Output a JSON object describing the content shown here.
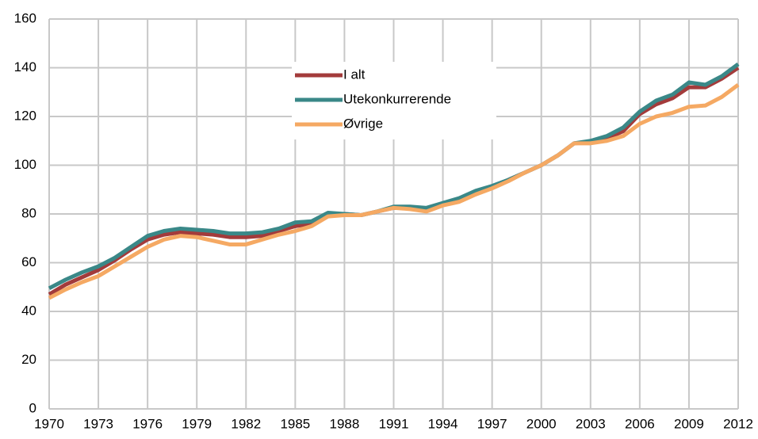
{
  "chart_data": {
    "type": "line",
    "x": [
      1970,
      1971,
      1972,
      1973,
      1974,
      1975,
      1976,
      1977,
      1978,
      1979,
      1980,
      1981,
      1982,
      1983,
      1984,
      1985,
      1986,
      1987,
      1988,
      1989,
      1990,
      1991,
      1992,
      1993,
      1994,
      1995,
      1996,
      1997,
      1998,
      1999,
      2000,
      2001,
      2002,
      2003,
      2004,
      2005,
      2006,
      2007,
      2008,
      2009,
      2010,
      2011,
      2012
    ],
    "series": [
      {
        "name": "I alt",
        "color": "#a33b3b",
        "values": [
          47,
          51,
          54,
          57,
          61,
          65.5,
          69.5,
          71.5,
          72.5,
          72,
          71.5,
          70.5,
          70.5,
          71,
          73,
          75,
          76,
          79.5,
          80,
          79.5,
          81,
          82.5,
          82.5,
          82,
          84,
          86,
          89,
          91,
          94,
          97,
          100,
          104,
          109,
          109.5,
          111,
          114,
          121,
          125,
          127.5,
          132,
          132,
          135.5,
          140
        ]
      },
      {
        "name": "Utekonkurrerende",
        "color": "#3a8888",
        "values": [
          49.5,
          53,
          56,
          58.5,
          62,
          66.5,
          71,
          73,
          74,
          73.5,
          73,
          72,
          72,
          72.5,
          74,
          76.5,
          77,
          80.5,
          80,
          79.5,
          81,
          83,
          83,
          82.5,
          84.5,
          86.5,
          89.5,
          91.5,
          94,
          97,
          100,
          104,
          109,
          110,
          112,
          115.5,
          122,
          126.5,
          129,
          134,
          133,
          136.5,
          141.5
        ]
      },
      {
        "name": "Øvrige",
        "color": "#f5a963",
        "values": [
          45.5,
          49,
          52,
          54.5,
          58.5,
          62.5,
          66.5,
          69.5,
          71,
          70.5,
          69,
          67.5,
          67.5,
          69.5,
          71.5,
          73,
          75,
          79,
          79.5,
          79.5,
          81,
          82.5,
          82,
          81,
          83.5,
          85,
          88,
          90.5,
          93.5,
          97,
          100,
          104,
          109,
          109,
          110,
          112,
          117,
          120,
          121.5,
          124,
          124.5,
          128,
          133
        ]
      }
    ],
    "xlim": [
      1970,
      2012
    ],
    "xticks": [
      1970,
      1973,
      1976,
      1979,
      1982,
      1985,
      1988,
      1991,
      1994,
      1997,
      2000,
      2003,
      2006,
      2009,
      2012
    ],
    "ylim": [
      0,
      160
    ],
    "yticks": [
      0,
      20,
      40,
      60,
      80,
      100,
      120,
      140,
      160
    ],
    "grid": true
  }
}
